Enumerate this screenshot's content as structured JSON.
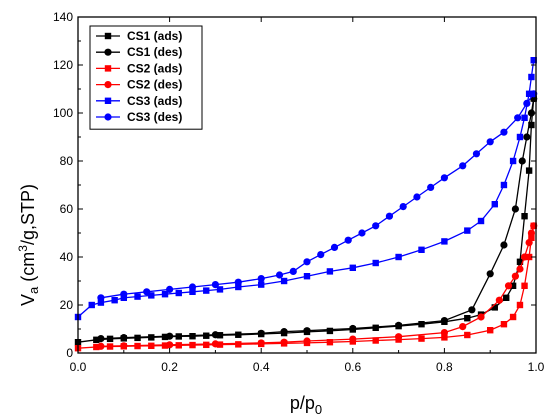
{
  "chart_data": {
    "type": "scatter",
    "title": "",
    "xlabel": {
      "main": "p/p",
      "sub": "0"
    },
    "ylabel": {
      "pre": "V",
      "sub": "a",
      "mid": " (cm",
      "sup": "3",
      "post": "/g,STP)"
    },
    "xlim": [
      0.0,
      1.0
    ],
    "ylim": [
      0,
      140
    ],
    "xticks": [
      "0.0",
      "0.2",
      "0.4",
      "0.6",
      "0.8",
      "1.0"
    ],
    "yticks": [
      "0",
      "20",
      "40",
      "60",
      "80",
      "100",
      "120",
      "140"
    ],
    "grid": false,
    "legend_position": "top-left",
    "series": [
      {
        "name": "CS1 (ads)",
        "color": "#000000",
        "marker": "square",
        "points": [
          [
            0.0,
            4.5
          ],
          [
            0.04,
            5.5
          ],
          [
            0.07,
            5.9
          ],
          [
            0.1,
            6.1
          ],
          [
            0.13,
            6.3
          ],
          [
            0.16,
            6.5
          ],
          [
            0.19,
            6.7
          ],
          [
            0.22,
            6.9
          ],
          [
            0.25,
            7.0
          ],
          [
            0.28,
            7.2
          ],
          [
            0.31,
            7.4
          ],
          [
            0.35,
            7.6
          ],
          [
            0.4,
            7.9
          ],
          [
            0.45,
            8.3
          ],
          [
            0.5,
            8.8
          ],
          [
            0.55,
            9.2
          ],
          [
            0.6,
            9.8
          ],
          [
            0.65,
            10.5
          ],
          [
            0.7,
            11.2
          ],
          [
            0.75,
            12.0
          ],
          [
            0.8,
            13.0
          ],
          [
            0.85,
            14.5
          ],
          [
            0.88,
            16.0
          ],
          [
            0.91,
            19.0
          ],
          [
            0.935,
            23.0
          ],
          [
            0.95,
            28.0
          ],
          [
            0.965,
            38.0
          ],
          [
            0.975,
            57.0
          ],
          [
            0.985,
            76.0
          ],
          [
            0.99,
            95.0
          ],
          [
            0.995,
            106.0
          ]
        ]
      },
      {
        "name": "CS1 (des)",
        "color": "#000000",
        "marker": "circle",
        "points": [
          [
            0.995,
            106.0
          ],
          [
            0.99,
            100.0
          ],
          [
            0.98,
            90.0
          ],
          [
            0.97,
            80.0
          ],
          [
            0.955,
            60.0
          ],
          [
            0.93,
            45.0
          ],
          [
            0.9,
            33.0
          ],
          [
            0.86,
            18.0
          ],
          [
            0.8,
            13.5
          ],
          [
            0.7,
            11.5
          ],
          [
            0.6,
            10.2
          ],
          [
            0.5,
            9.3
          ],
          [
            0.45,
            8.9
          ],
          [
            0.4,
            8.2
          ],
          [
            0.3,
            7.6
          ],
          [
            0.2,
            7.0
          ],
          [
            0.1,
            6.4
          ],
          [
            0.05,
            6.0
          ]
        ]
      },
      {
        "name": "CS2 (ads)",
        "color": "#ff0000",
        "marker": "square",
        "points": [
          [
            0.0,
            2.0
          ],
          [
            0.04,
            2.5
          ],
          [
            0.07,
            2.7
          ],
          [
            0.1,
            2.8
          ],
          [
            0.13,
            2.9
          ],
          [
            0.16,
            3.0
          ],
          [
            0.19,
            3.1
          ],
          [
            0.22,
            3.2
          ],
          [
            0.25,
            3.3
          ],
          [
            0.28,
            3.4
          ],
          [
            0.31,
            3.5
          ],
          [
            0.35,
            3.6
          ],
          [
            0.4,
            3.8
          ],
          [
            0.45,
            4.0
          ],
          [
            0.5,
            4.2
          ],
          [
            0.55,
            4.5
          ],
          [
            0.6,
            4.8
          ],
          [
            0.65,
            5.2
          ],
          [
            0.7,
            5.6
          ],
          [
            0.75,
            6.0
          ],
          [
            0.8,
            6.5
          ],
          [
            0.85,
            7.5
          ],
          [
            0.9,
            9.5
          ],
          [
            0.93,
            12.0
          ],
          [
            0.95,
            15.0
          ],
          [
            0.965,
            20.0
          ],
          [
            0.975,
            28.0
          ],
          [
            0.985,
            40.0
          ],
          [
            0.99,
            48.0
          ],
          [
            0.995,
            53.0
          ]
        ]
      },
      {
        "name": "CS2 (des)",
        "color": "#ff0000",
        "marker": "circle",
        "points": [
          [
            0.995,
            53.0
          ],
          [
            0.99,
            50.0
          ],
          [
            0.985,
            46.0
          ],
          [
            0.975,
            40.0
          ],
          [
            0.965,
            35.0
          ],
          [
            0.955,
            32.0
          ],
          [
            0.94,
            28.0
          ],
          [
            0.92,
            22.0
          ],
          [
            0.88,
            15.0
          ],
          [
            0.84,
            11.0
          ],
          [
            0.8,
            8.5
          ],
          [
            0.7,
            6.8
          ],
          [
            0.6,
            5.8
          ],
          [
            0.5,
            5.0
          ],
          [
            0.45,
            4.5
          ],
          [
            0.4,
            4.2
          ],
          [
            0.3,
            3.8
          ],
          [
            0.2,
            3.4
          ],
          [
            0.1,
            3.0
          ],
          [
            0.05,
            2.8
          ]
        ]
      },
      {
        "name": "CS3 (ads)",
        "color": "#0000ff",
        "marker": "square",
        "points": [
          [
            0.0,
            15.0
          ],
          [
            0.03,
            20.0
          ],
          [
            0.05,
            21.0
          ],
          [
            0.08,
            22.0
          ],
          [
            0.1,
            23.0
          ],
          [
            0.13,
            23.5
          ],
          [
            0.16,
            24.0
          ],
          [
            0.19,
            24.5
          ],
          [
            0.22,
            25.0
          ],
          [
            0.25,
            25.5
          ],
          [
            0.28,
            26.0
          ],
          [
            0.31,
            26.5
          ],
          [
            0.35,
            27.5
          ],
          [
            0.4,
            28.5
          ],
          [
            0.45,
            30.0
          ],
          [
            0.5,
            32.0
          ],
          [
            0.55,
            34.0
          ],
          [
            0.6,
            35.5
          ],
          [
            0.65,
            37.5
          ],
          [
            0.7,
            40.0
          ],
          [
            0.75,
            43.0
          ],
          [
            0.8,
            46.5
          ],
          [
            0.85,
            51.0
          ],
          [
            0.88,
            55.0
          ],
          [
            0.91,
            62.0
          ],
          [
            0.93,
            70.0
          ],
          [
            0.95,
            80.0
          ],
          [
            0.965,
            90.0
          ],
          [
            0.975,
            98.0
          ],
          [
            0.985,
            108.0
          ],
          [
            0.99,
            115.0
          ],
          [
            0.995,
            122.0
          ]
        ]
      },
      {
        "name": "CS3 (des)",
        "color": "#0000ff",
        "marker": "circle",
        "points": [
          [
            0.995,
            108.0
          ],
          [
            0.98,
            104.0
          ],
          [
            0.96,
            98.0
          ],
          [
            0.93,
            92.0
          ],
          [
            0.9,
            88.0
          ],
          [
            0.87,
            83.0
          ],
          [
            0.84,
            78.0
          ],
          [
            0.8,
            73.0
          ],
          [
            0.77,
            69.0
          ],
          [
            0.74,
            65.0
          ],
          [
            0.71,
            61.0
          ],
          [
            0.68,
            57.0
          ],
          [
            0.65,
            53.0
          ],
          [
            0.62,
            50.0
          ],
          [
            0.59,
            47.0
          ],
          [
            0.56,
            44.0
          ],
          [
            0.53,
            41.0
          ],
          [
            0.5,
            38.0
          ],
          [
            0.47,
            34.0
          ],
          [
            0.44,
            32.5
          ],
          [
            0.4,
            31.0
          ],
          [
            0.35,
            29.5
          ],
          [
            0.3,
            28.5
          ],
          [
            0.25,
            27.5
          ],
          [
            0.2,
            26.5
          ],
          [
            0.15,
            25.5
          ],
          [
            0.1,
            24.5
          ],
          [
            0.05,
            23.0
          ]
        ]
      }
    ]
  }
}
